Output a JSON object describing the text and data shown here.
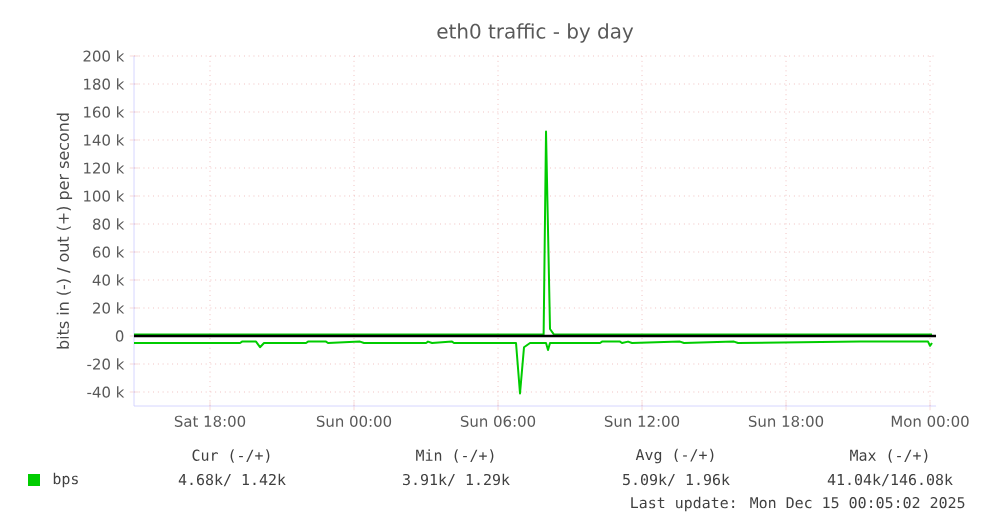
{
  "chart_data": {
    "type": "line",
    "title": "eth0 traffic - by day",
    "ylabel": "bits in (-) / out (+) per second",
    "xlim": [
      "2025-12-13T14:50",
      "2025-12-15T00:15"
    ],
    "ylim": [
      -50000,
      200000
    ],
    "xticks": [
      {
        "value": "2025-12-13T18:00",
        "label": "Sat 18:00"
      },
      {
        "value": "2025-12-14T00:00",
        "label": "Sun 00:00"
      },
      {
        "value": "2025-12-14T06:00",
        "label": "Sun 06:00"
      },
      {
        "value": "2025-12-14T12:00",
        "label": "Sun 12:00"
      },
      {
        "value": "2025-12-14T18:00",
        "label": "Sun 18:00"
      },
      {
        "value": "2025-12-15T00:00",
        "label": "Mon 00:00"
      }
    ],
    "yticks": [
      {
        "value": -40000,
        "label": "-40 k"
      },
      {
        "value": -20000,
        "label": "-20 k"
      },
      {
        "value": 0,
        "label": "0"
      },
      {
        "value": 20000,
        "label": "20 k"
      },
      {
        "value": 40000,
        "label": "40 k"
      },
      {
        "value": 60000,
        "label": "60 k"
      },
      {
        "value": 80000,
        "label": "80 k"
      },
      {
        "value": 100000,
        "label": "100 k"
      },
      {
        "value": 120000,
        "label": "120 k"
      },
      {
        "value": 140000,
        "label": "140 k"
      },
      {
        "value": 160000,
        "label": "160 k"
      },
      {
        "value": 180000,
        "label": "180 k"
      },
      {
        "value": 200000,
        "label": "200 k"
      }
    ],
    "grid": true,
    "legend": "bottom",
    "ref_lines": [
      {
        "axis": "y",
        "value": 0,
        "color": "#000000"
      }
    ],
    "series": [
      {
        "name": "bps",
        "color": "#00cc00",
        "x": [
          "2025-12-13T14:50",
          "2025-12-14T07:54",
          "2025-12-14T08:00",
          "2025-12-14T08:10",
          "2025-12-14T08:20",
          "2025-12-15T00:05"
        ],
        "values": [
          1000,
          1000,
          146000,
          5000,
          1000,
          1000
        ]
      },
      {
        "color": "#00cc00",
        "x": [
          "2025-12-13T14:50",
          "2025-12-13T19:15",
          "2025-12-13T19:20",
          "2025-12-13T19:55",
          "2025-12-13T20:05",
          "2025-12-13T20:15",
          "2025-12-13T22:00",
          "2025-12-13T22:05",
          "2025-12-13T22:50",
          "2025-12-13T22:55",
          "2025-12-14T00:15",
          "2025-12-14T00:25",
          "2025-12-14T03:00",
          "2025-12-14T03:05",
          "2025-12-14T03:15",
          "2025-12-14T04:05",
          "2025-12-14T04:10",
          "2025-12-14T06:45",
          "2025-12-14T06:55",
          "2025-12-14T07:05",
          "2025-12-14T07:20",
          "2025-12-14T08:00",
          "2025-12-14T08:05",
          "2025-12-14T08:10",
          "2025-12-14T10:15",
          "2025-12-14T10:20",
          "2025-12-14T11:05",
          "2025-12-14T11:10",
          "2025-12-14T11:25",
          "2025-12-14T11:35",
          "2025-12-14T13:35",
          "2025-12-14T13:45",
          "2025-12-14T15:50",
          "2025-12-14T16:00",
          "2025-12-14T21:05",
          "2025-12-14T23:55",
          "2025-12-15T00:00",
          "2025-12-15T00:05"
        ],
        "values": [
          -5000,
          -5000,
          -4000,
          -4000,
          -8000,
          -5000,
          -5000,
          -4000,
          -4000,
          -5000,
          -4000,
          -5000,
          -5000,
          -4000,
          -5000,
          -4000,
          -5000,
          -5000,
          -41000,
          -8000,
          -5000,
          -5000,
          -10000,
          -5000,
          -5000,
          -4000,
          -4000,
          -5000,
          -4000,
          -5000,
          -4000,
          -5000,
          -4000,
          -5000,
          -4000,
          -4000,
          -7000,
          -5000
        ]
      }
    ],
    "annotations": [
      "Cur (-/+)",
      "Min (-/+)",
      "Avg (-/+)",
      "Max (-/+)",
      "4.68k/ 1.42k",
      "3.91k/ 1.29k",
      "5.09k/ 1.96k",
      "41.04k/146.08k",
      "Last update: Mon Dec 15 00:05:02 2025"
    ]
  }
}
